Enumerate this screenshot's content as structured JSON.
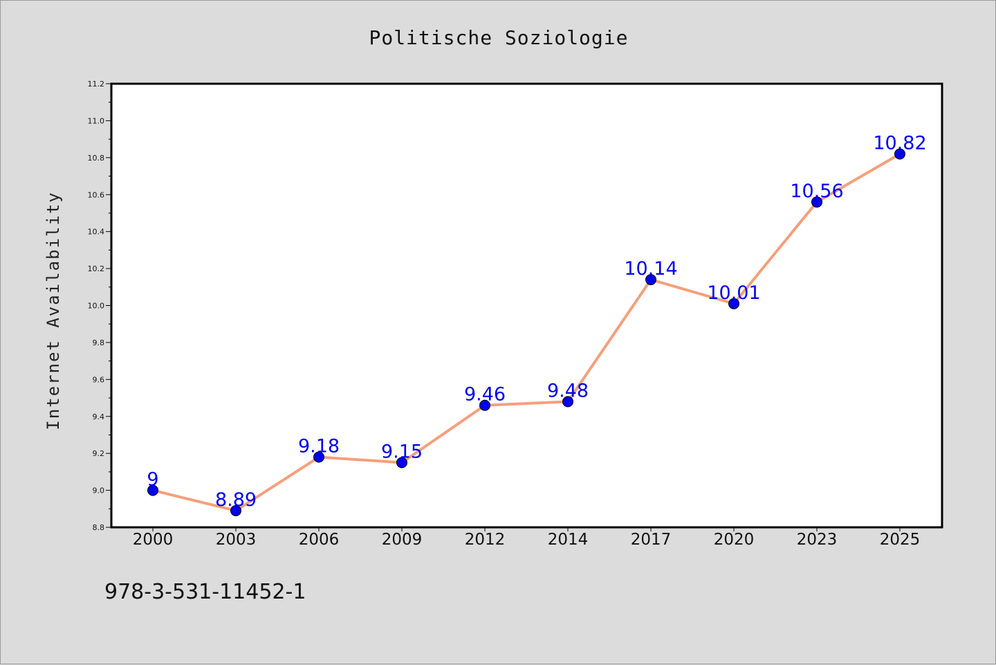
{
  "chart_data": {
    "type": "line",
    "title": "Politische Soziologie",
    "xlabel": "",
    "ylabel": "Internet Availability",
    "categories": [
      "2000",
      "2003",
      "2006",
      "2009",
      "2012",
      "2014",
      "2017",
      "2020",
      "2023",
      "2025"
    ],
    "series": [
      {
        "values": [
          9,
          8.89,
          9.18,
          9.15,
          9.46,
          9.48,
          10.14,
          10.01,
          10.56,
          10.82
        ],
        "data_labels": [
          "9",
          "8.89",
          "9.18",
          "9.15",
          "9.46",
          "9.48",
          "10.14",
          "10.01",
          "10.56",
          "10.82"
        ],
        "line_color": "#f4a07c",
        "marker_color": "#0000ee"
      }
    ],
    "ylim": [
      8.8,
      11.2
    ],
    "yticks": [
      "8.8",
      "9.0",
      "9.2",
      "9.4",
      "9.6",
      "9.8",
      "10.0",
      "10.2",
      "10.4",
      "10.6",
      "10.8",
      "11.0",
      "11.2"
    ],
    "grid": false,
    "legend": "none"
  },
  "footer": {
    "text": "978-3-531-11452-1"
  },
  "colors": {
    "background": "#dcdcdc",
    "plot_background": "#ffffff",
    "line": "#f4a07c",
    "marker": "#0000ee",
    "data_label": "#0000ee"
  }
}
